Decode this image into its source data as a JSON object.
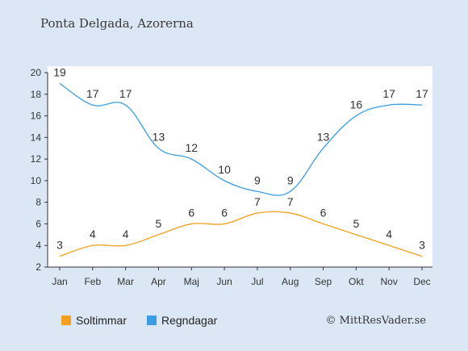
{
  "title": "Ponta Delgada, Azorerna",
  "credit": "© MittResVader.se",
  "chart_data": {
    "type": "line",
    "categories": [
      "Jan",
      "Feb",
      "Mar",
      "Apr",
      "Maj",
      "Jun",
      "Jul",
      "Aug",
      "Sep",
      "Okt",
      "Nov",
      "Dec"
    ],
    "ylim": [
      2,
      20
    ],
    "yticks": [
      2,
      4,
      6,
      8,
      10,
      12,
      14,
      16,
      18,
      20
    ],
    "grid": false,
    "legend_position": "bottom-left",
    "series": [
      {
        "name": "Soltimmar",
        "color": "#f5a020",
        "values": [
          3,
          4,
          4,
          5,
          6,
          6,
          7,
          7,
          6,
          5,
          4,
          3
        ]
      },
      {
        "name": "Regndagar",
        "color": "#3b9de3",
        "values": [
          19,
          17,
          17,
          13,
          12,
          10,
          9,
          9,
          13,
          16,
          17,
          17
        ]
      }
    ]
  }
}
